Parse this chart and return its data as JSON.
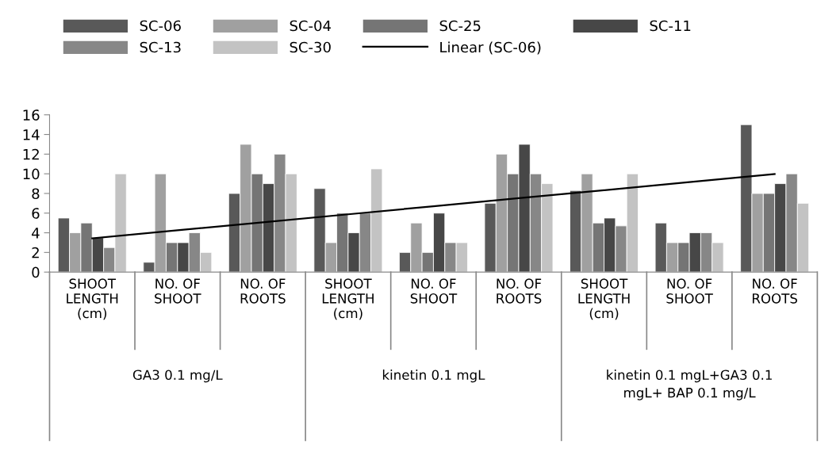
{
  "chart_data": {
    "type": "bar",
    "categories": [
      "SHOOT\nLENGTH\n(cm)",
      "NO. OF\nSHOOT",
      "NO. OF\nROOTS",
      "SHOOT\nLENGTH\n(cm)",
      "NO. OF\nSHOOT",
      "NO. OF\nROOTS",
      "SHOOT\nLENGTH\n(cm)",
      "NO. OF\nSHOOT",
      "NO. OF\nROOTS"
    ],
    "series": [
      {
        "name": "SC-06",
        "color": "#595959",
        "values": [
          5.5,
          1,
          8,
          8.5,
          2,
          7,
          8.3,
          5,
          15
        ]
      },
      {
        "name": "SC-04",
        "color": "#a0a0a0",
        "values": [
          4,
          10,
          13,
          3,
          5,
          12,
          10,
          3,
          8
        ]
      },
      {
        "name": "SC-25",
        "color": "#757575",
        "values": [
          5,
          3,
          10,
          6,
          2,
          10,
          5,
          3,
          8
        ]
      },
      {
        "name": "SC-11",
        "color": "#474747",
        "values": [
          3.5,
          3,
          9,
          4,
          6,
          13,
          5.5,
          4,
          9
        ]
      },
      {
        "name": "SC-13",
        "color": "#878787",
        "values": [
          2.5,
          4,
          12,
          6,
          3,
          10,
          4.7,
          4,
          10
        ]
      },
      {
        "name": "SC-30",
        "color": "#c3c3c3",
        "values": [
          10,
          2,
          10,
          10.5,
          3,
          9,
          10,
          3,
          7
        ]
      },
      {
        "name": "Linear (SC-06)",
        "type": "line",
        "color": "#000000",
        "values": [
          3.43,
          4.25,
          5.07,
          5.88,
          6.7,
          7.52,
          8.33,
          9.15,
          9.97
        ]
      }
    ],
    "annotations": [
      "GA3 0.1 mg/L",
      "kinetin 0.1 mgL",
      "kinetin 0.1 mgL+GA3 0.1\nmgL+ BAP 0.1 mg/L"
    ],
    "ylim": [
      0,
      16
    ],
    "yticks": [
      0,
      2,
      4,
      6,
      8,
      10,
      12,
      14,
      16
    ],
    "grid": false,
    "legend": "top"
  }
}
